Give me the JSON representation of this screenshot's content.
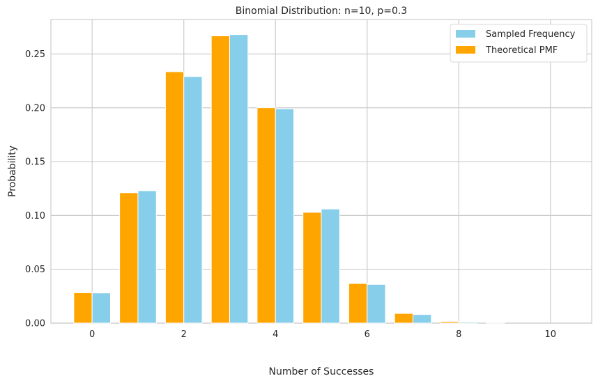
{
  "chart_data": {
    "type": "bar",
    "title": "Binomial Distribution: n=10, p=0.3",
    "xlabel": "Number of Successes",
    "ylabel": "Probability",
    "x": [
      0,
      1,
      2,
      3,
      4,
      5,
      6,
      7,
      8,
      9,
      10
    ],
    "xlim": [
      -0.9,
      10.9
    ],
    "ylim": [
      0,
      0.282
    ],
    "x_ticks": [
      0,
      2,
      4,
      6,
      8,
      10
    ],
    "y_ticks": [
      0.0,
      0.05,
      0.1,
      0.15,
      0.2,
      0.25
    ],
    "y_tick_labels": [
      "0.00",
      "0.05",
      "0.10",
      "0.15",
      "0.20",
      "0.25"
    ],
    "grid": true,
    "legend_position": "top-right",
    "series": [
      {
        "name": "Sampled Frequency",
        "color": "#87ceeb",
        "values": [
          0.028,
          0.123,
          0.229,
          0.268,
          0.199,
          0.106,
          0.036,
          0.008,
          0.001,
          0.0,
          0.0
        ]
      },
      {
        "name": "Theoretical PMF",
        "color": "#ffa500",
        "values": [
          0.0282,
          0.1211,
          0.2335,
          0.2668,
          0.2001,
          0.1029,
          0.0368,
          0.009,
          0.0014,
          0.0001,
          0.0
        ]
      }
    ]
  }
}
